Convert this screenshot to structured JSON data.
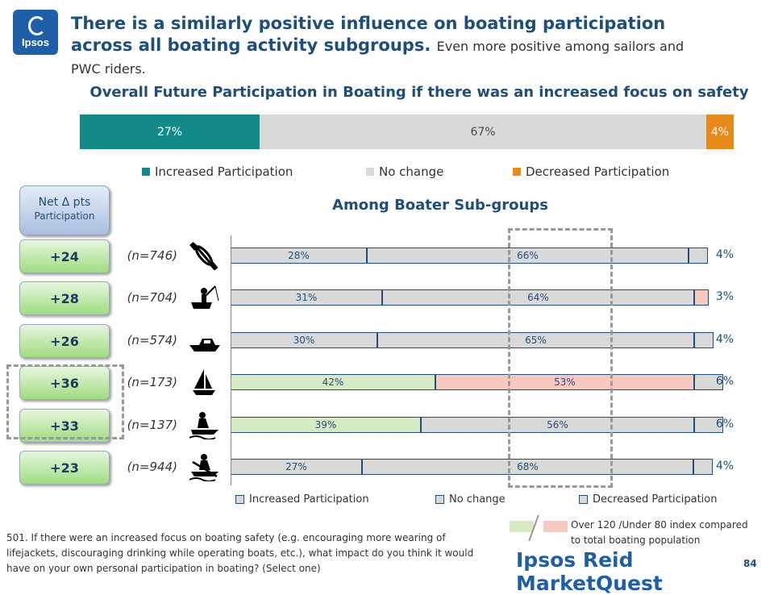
{
  "header": {
    "title": "There is a similarly positive influence on boating participation across all boating activity subgroups.",
    "subtitle": "Even more positive among sailors and PWC riders.",
    "logo_text": "Ipsos"
  },
  "colors": {
    "increased": "#138a8a",
    "no_change": "#d9d9d9",
    "decreased": "#e88a1a",
    "sub_bar": "#d9d9d9",
    "over_index": "#d8e9c6",
    "under_index": "#f7c9c0"
  },
  "chart_data": [
    {
      "type": "bar",
      "orientation": "horizontal",
      "stacked": true,
      "title": "Overall Future Participation in Boating if there was an increased focus on safety",
      "series": [
        {
          "name": "Increased Participation",
          "value": 27,
          "label": "27%"
        },
        {
          "name": "No change",
          "value": 67,
          "label": "67%"
        },
        {
          "name": "Decreased Participation",
          "value": 4,
          "label": "4%"
        }
      ],
      "legend_position": "bottom"
    },
    {
      "type": "bar",
      "orientation": "horizontal",
      "stacked": true,
      "title": "Among Boater Sub-groups",
      "series_names": [
        "Increased Participation",
        "No change",
        "Decreased Participation"
      ],
      "rows": [
        {
          "n": "(n=746)",
          "icon": "paddling-icon",
          "net": "+24",
          "increased": 28,
          "no_change": 66,
          "decreased": 4,
          "labels": [
            "28%",
            "66%",
            "4%"
          ],
          "highlight": []
        },
        {
          "n": "(n=704)",
          "icon": "fishing-icon",
          "net": "+28",
          "increased": 31,
          "no_change": 64,
          "decreased": 3,
          "labels": [
            "31%",
            "64%",
            "3%"
          ],
          "highlight": [
            "decreased-under"
          ]
        },
        {
          "n": "(n=574)",
          "icon": "powerboat-icon",
          "net": "+26",
          "increased": 30,
          "no_change": 65,
          "decreased": 4,
          "labels": [
            "30%",
            "65%",
            "4%"
          ],
          "highlight": []
        },
        {
          "n": "(n=173)",
          "icon": "sailboat-icon",
          "net": "+36",
          "increased": 42,
          "no_change": 53,
          "decreased": 6,
          "labels": [
            "42%",
            "53%",
            "6%"
          ],
          "highlight": [
            "increased-over",
            "no_change-under"
          ]
        },
        {
          "n": "(n=137)",
          "icon": "pwc-icon",
          "net": "+33",
          "increased": 39,
          "no_change": 56,
          "decreased": 6,
          "labels": [
            "39%",
            "56%",
            "6%"
          ],
          "highlight": [
            "increased-over"
          ]
        },
        {
          "n": "(n=944)",
          "icon": "rowing-icon",
          "net": "+23",
          "increased": 27,
          "no_change": 68,
          "decreased": 4,
          "labels": [
            "27%",
            "68%",
            "4%"
          ],
          "highlight": []
        }
      ],
      "legend_position": "bottom"
    }
  ],
  "net_header": {
    "line1": "Net Δ pts",
    "line2": "Participation"
  },
  "index_legend": {
    "line1": "Over 120 /Under 80 index compared",
    "line2": "to total boating population"
  },
  "footnote": "501. If there were an increased focus on boating safety (e.g. encouraging more wearing of lifejackets, discouraging drinking while operating boats, etc.), what impact do you think it would have on your own personal participation in boating? (Select one)",
  "brand": "Ipsos Reid MarketQuest",
  "page_number": "84"
}
